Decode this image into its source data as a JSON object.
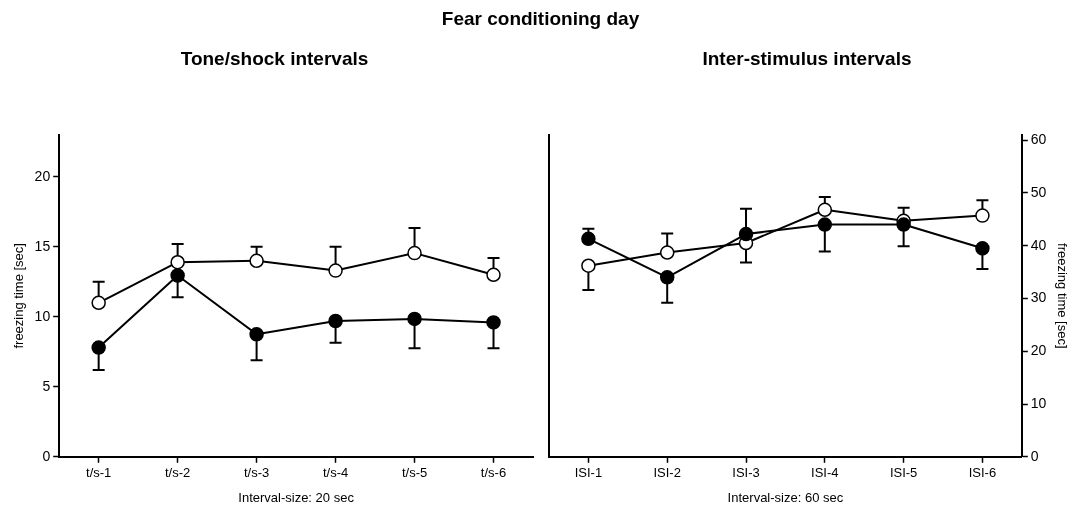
{
  "chart_data": [
    {
      "type": "line",
      "title": "Tone/shock intervals",
      "annotations": [
        "Fear conditioning day"
      ],
      "xlabel": "Interval-size: 20 sec",
      "ylabel": "freezing time [sec]",
      "categories": [
        "t/s-1",
        "t/s-2",
        "t/s-3",
        "t/s-4",
        "t/s-5",
        "t/s-6"
      ],
      "ylim": [
        0,
        23
      ],
      "yticks": [
        0,
        5,
        10,
        15,
        20
      ],
      "grid": false,
      "legend": false,
      "marker": "circle",
      "line_style": "solid",
      "series": [
        {
          "color": "#000000",
          "values": [
            7.8,
            12.95,
            8.75,
            9.7,
            9.85,
            9.6
          ],
          "errors": [
            [
              6.2,
              7.8
            ],
            [
              11.4,
              12.95
            ],
            [
              6.9,
              8.75
            ],
            [
              8.15,
              9.7
            ],
            [
              7.75,
              9.85
            ],
            [
              7.75,
              9.6
            ]
          ]
        },
        {
          "color": "#ffffff",
          "values": [
            11.0,
            13.9,
            14.0,
            13.3,
            14.55,
            13.0
          ],
          "errors": [
            [
              11.0,
              12.5
            ],
            [
              13.9,
              15.2
            ],
            [
              14.0,
              15.0
            ],
            [
              13.3,
              15.0
            ],
            [
              14.55,
              16.35
            ],
            [
              13.0,
              14.2
            ]
          ]
        }
      ]
    },
    {
      "type": "line",
      "title": "Inter-stimulus intervals",
      "xlabel": "Interval-size: 60 sec",
      "y2label": "freezing time [sec]",
      "categories": [
        "ISI-1",
        "ISI-2",
        "ISI-3",
        "ISI-4",
        "ISI-5",
        "ISI-6"
      ],
      "y2lim": [
        0,
        61
      ],
      "y2ticks": [
        0,
        10,
        20,
        30,
        40,
        50,
        60
      ],
      "grid": false,
      "legend": false,
      "marker": "circle",
      "line_style": "solid",
      "series": [
        {
          "axis": "y2",
          "color": "#000000",
          "values": [
            41.3,
            34.0,
            42.2,
            44.0,
            44.0,
            39.5
          ],
          "errors": [
            [
              41.3,
              43.2
            ],
            [
              29.2,
              34.0
            ],
            [
              42.2,
              47.0
            ],
            [
              38.9,
              44.0
            ],
            [
              39.9,
              44.0
            ],
            [
              35.6,
              39.5
            ]
          ]
        },
        {
          "axis": "y2",
          "color": "#ffffff",
          "values": [
            36.2,
            38.7,
            40.5,
            46.8,
            44.7,
            45.7
          ],
          "errors": [
            [
              31.6,
              36.2
            ],
            [
              38.7,
              42.3
            ],
            [
              36.8,
              40.5
            ],
            [
              46.8,
              49.2
            ],
            [
              44.7,
              47.2
            ],
            [
              45.7,
              48.6
            ]
          ]
        }
      ]
    }
  ]
}
